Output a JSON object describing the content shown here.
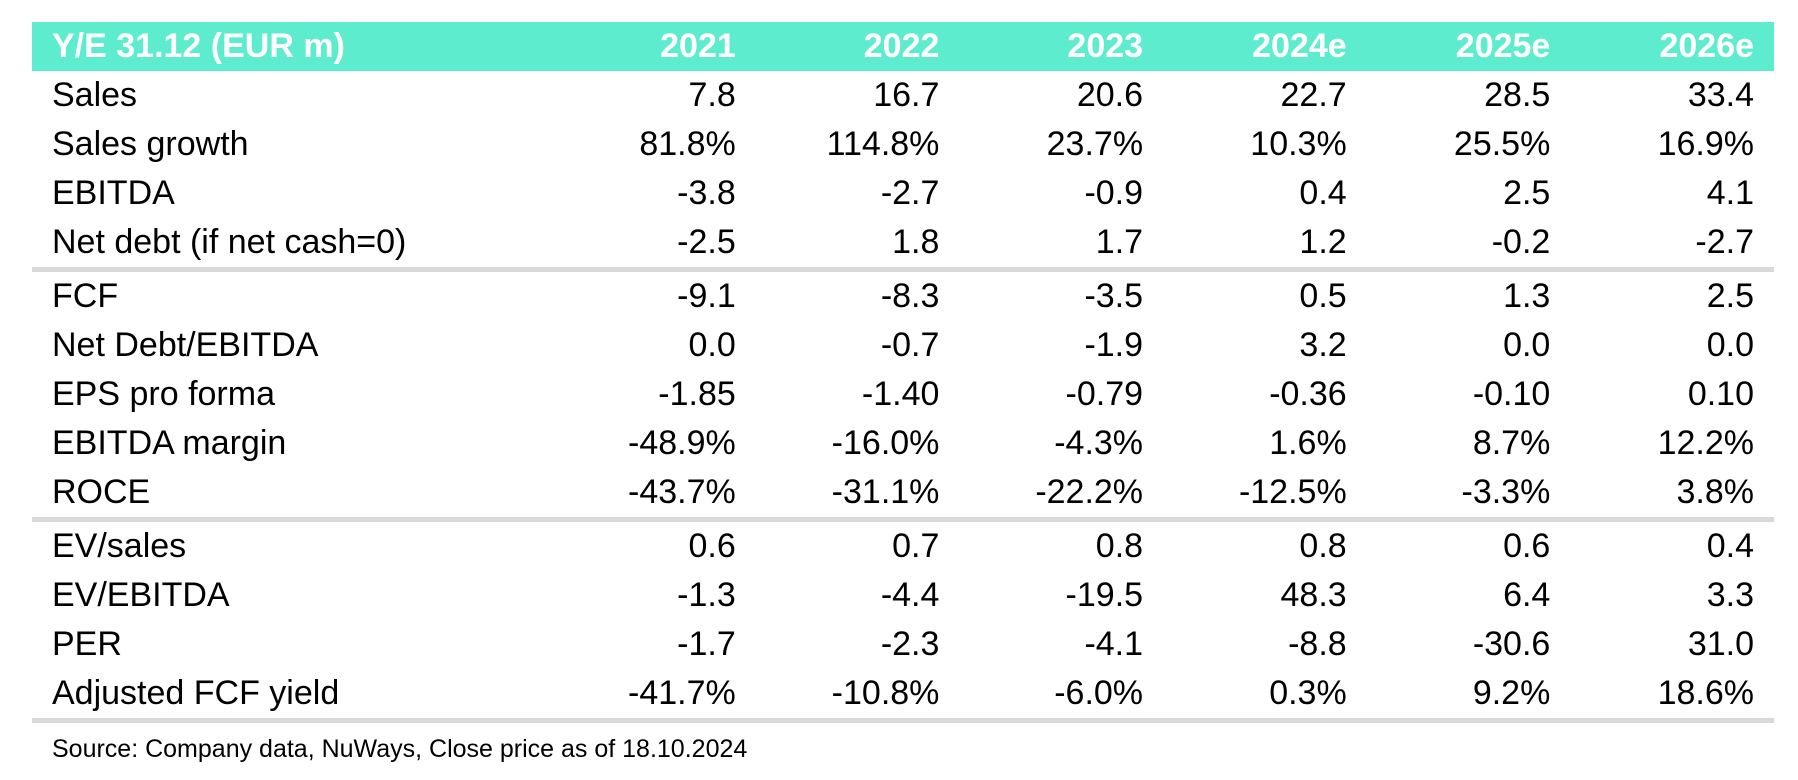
{
  "header": {
    "label": "Y/E 31.12 (EUR m)",
    "years": [
      "2021",
      "2022",
      "2023",
      "2024e",
      "2025e",
      "2026e"
    ]
  },
  "sections": [
    {
      "rows": [
        {
          "label": "Sales",
          "values": [
            "7.8",
            "16.7",
            "20.6",
            "22.7",
            "28.5",
            "33.4"
          ]
        },
        {
          "label": "Sales growth",
          "values": [
            "81.8%",
            "114.8%",
            "23.7%",
            "10.3%",
            "25.5%",
            "16.9%"
          ]
        },
        {
          "label": "EBITDA",
          "values": [
            "-3.8",
            "-2.7",
            "-0.9",
            "0.4",
            "2.5",
            "4.1"
          ]
        },
        {
          "label": "Net debt (if net cash=0)",
          "values": [
            "-2.5",
            "1.8",
            "1.7",
            "1.2",
            "-0.2",
            "-2.7"
          ]
        }
      ]
    },
    {
      "rows": [
        {
          "label": "FCF",
          "values": [
            "-9.1",
            "-8.3",
            "-3.5",
            "0.5",
            "1.3",
            "2.5"
          ]
        },
        {
          "label": "Net Debt/EBITDA",
          "values": [
            "0.0",
            "-0.7",
            "-1.9",
            "3.2",
            "0.0",
            "0.0"
          ]
        },
        {
          "label": "EPS pro forma",
          "values": [
            "-1.85",
            "-1.40",
            "-0.79",
            "-0.36",
            "-0.10",
            "0.10"
          ]
        },
        {
          "label": "EBITDA margin",
          "values": [
            "-48.9%",
            "-16.0%",
            "-4.3%",
            "1.6%",
            "8.7%",
            "12.2%"
          ]
        },
        {
          "label": "ROCE",
          "values": [
            "-43.7%",
            "-31.1%",
            "-22.2%",
            "-12.5%",
            "-3.3%",
            "3.8%"
          ]
        }
      ]
    },
    {
      "rows": [
        {
          "label": "EV/sales",
          "values": [
            "0.6",
            "0.7",
            "0.8",
            "0.8",
            "0.6",
            "0.4"
          ]
        },
        {
          "label": "EV/EBITDA",
          "values": [
            "-1.3",
            "-4.4",
            "-19.5",
            "48.3",
            "6.4",
            "3.3"
          ]
        },
        {
          "label": "PER",
          "values": [
            "-1.7",
            "-2.3",
            "-4.1",
            "-8.8",
            "-30.6",
            "31.0"
          ]
        },
        {
          "label": "Adjusted FCF yield",
          "values": [
            "-41.7%",
            "-10.8%",
            "-6.0%",
            "0.3%",
            "9.2%",
            "18.6%"
          ]
        }
      ]
    }
  ],
  "source": "Source: Company data, NuWays, Close price as of 18.10.2024",
  "colors": {
    "header_bg": "#5eeccf",
    "header_text": "#ffffff",
    "separator": "#d9d9d9"
  }
}
